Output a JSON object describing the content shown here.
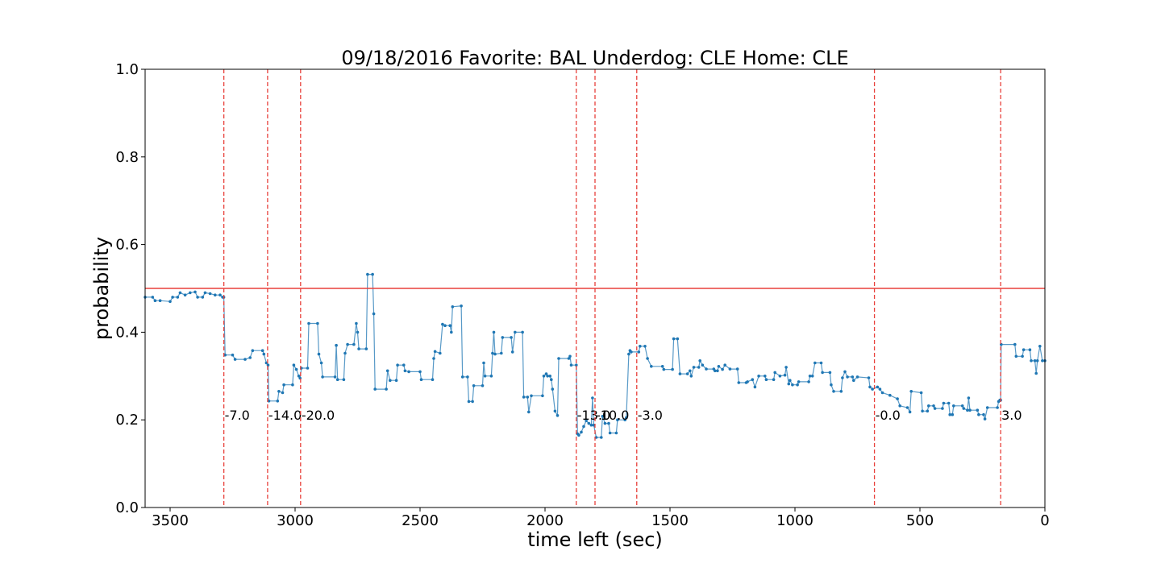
{
  "chart_data": {
    "type": "line",
    "title": "09/18/2016 Favorite: BAL Underdog: CLE Home: CLE",
    "xlabel": "time left (sec)",
    "ylabel": "probability",
    "xlim": [
      3600,
      0
    ],
    "ylim": [
      0.0,
      1.0
    ],
    "x_ticks": [
      3500,
      3000,
      2500,
      2000,
      1500,
      1000,
      500,
      0
    ],
    "y_ticks": [
      0.0,
      0.2,
      0.4,
      0.6,
      0.8,
      1.0
    ],
    "x_tick_labels": [
      "3500",
      "3000",
      "2500",
      "2000",
      "1500",
      "1000",
      "500",
      "0"
    ],
    "y_tick_labels": [
      "0.0",
      "0.2",
      "0.4",
      "0.6",
      "0.8",
      "1.0"
    ],
    "reference_line": {
      "y": 0.5,
      "color": "#e8413c"
    },
    "series_color": "#1f77b4",
    "event_lines": [
      {
        "x": 3285,
        "label": "-7.0"
      },
      {
        "x": 3110,
        "label": "-14.0"
      },
      {
        "x": 2978,
        "label": "-20.0"
      },
      {
        "x": 1875,
        "label": "-13.0"
      },
      {
        "x": 1800,
        "label": "-10.0"
      },
      {
        "x": 1633,
        "label": "-3.0"
      },
      {
        "x": 682,
        "label": "-0.0"
      },
      {
        "x": 177,
        "label": "3.0"
      }
    ],
    "series": [
      {
        "points": [
          [
            3600,
            0.48
          ],
          [
            3570,
            0.48
          ],
          [
            3560,
            0.472
          ],
          [
            3540,
            0.472
          ],
          [
            3500,
            0.47
          ],
          [
            3490,
            0.48
          ],
          [
            3470,
            0.48
          ],
          [
            3460,
            0.49
          ],
          [
            3440,
            0.485
          ],
          [
            3420,
            0.49
          ],
          [
            3400,
            0.492
          ],
          [
            3390,
            0.48
          ],
          [
            3370,
            0.48
          ],
          [
            3360,
            0.49
          ],
          [
            3340,
            0.488
          ],
          [
            3320,
            0.485
          ],
          [
            3300,
            0.485
          ],
          [
            3290,
            0.48
          ],
          [
            3285,
            0.48
          ],
          [
            3280,
            0.348
          ],
          [
            3250,
            0.348
          ],
          [
            3240,
            0.338
          ],
          [
            3200,
            0.338
          ],
          [
            3180,
            0.342
          ],
          [
            3170,
            0.358
          ],
          [
            3130,
            0.358
          ],
          [
            3125,
            0.35
          ],
          [
            3115,
            0.33
          ],
          [
            3108,
            0.325
          ],
          [
            3105,
            0.243
          ],
          [
            3070,
            0.243
          ],
          [
            3065,
            0.265
          ],
          [
            3050,
            0.262
          ],
          [
            3045,
            0.28
          ],
          [
            3010,
            0.28
          ],
          [
            3005,
            0.325
          ],
          [
            2995,
            0.315
          ],
          [
            2985,
            0.3
          ],
          [
            2980,
            0.295
          ],
          [
            2975,
            0.318
          ],
          [
            2950,
            0.318
          ],
          [
            2945,
            0.42
          ],
          [
            2910,
            0.42
          ],
          [
            2905,
            0.35
          ],
          [
            2895,
            0.33
          ],
          [
            2890,
            0.298
          ],
          [
            2840,
            0.298
          ],
          [
            2835,
            0.37
          ],
          [
            2830,
            0.292
          ],
          [
            2805,
            0.292
          ],
          [
            2800,
            0.352
          ],
          [
            2790,
            0.372
          ],
          [
            2765,
            0.372
          ],
          [
            2755,
            0.42
          ],
          [
            2750,
            0.4
          ],
          [
            2745,
            0.362
          ],
          [
            2715,
            0.362
          ],
          [
            2710,
            0.532
          ],
          [
            2690,
            0.532
          ],
          [
            2685,
            0.442
          ],
          [
            2680,
            0.27
          ],
          [
            2635,
            0.27
          ],
          [
            2630,
            0.312
          ],
          [
            2620,
            0.29
          ],
          [
            2595,
            0.29
          ],
          [
            2590,
            0.325
          ],
          [
            2565,
            0.325
          ],
          [
            2560,
            0.312
          ],
          [
            2545,
            0.31
          ],
          [
            2500,
            0.31
          ],
          [
            2495,
            0.292
          ],
          [
            2450,
            0.292
          ],
          [
            2445,
            0.34
          ],
          [
            2440,
            0.356
          ],
          [
            2420,
            0.352
          ],
          [
            2410,
            0.418
          ],
          [
            2400,
            0.415
          ],
          [
            2380,
            0.415
          ],
          [
            2375,
            0.4
          ],
          [
            2370,
            0.458
          ],
          [
            2335,
            0.46
          ],
          [
            2330,
            0.298
          ],
          [
            2310,
            0.298
          ],
          [
            2305,
            0.242
          ],
          [
            2290,
            0.242
          ],
          [
            2285,
            0.278
          ],
          [
            2250,
            0.278
          ],
          [
            2245,
            0.33
          ],
          [
            2240,
            0.3
          ],
          [
            2215,
            0.3
          ],
          [
            2210,
            0.352
          ],
          [
            2205,
            0.4
          ],
          [
            2200,
            0.35
          ],
          [
            2175,
            0.352
          ],
          [
            2170,
            0.388
          ],
          [
            2135,
            0.388
          ],
          [
            2130,
            0.355
          ],
          [
            2120,
            0.4
          ],
          [
            2090,
            0.4
          ],
          [
            2085,
            0.252
          ],
          [
            2070,
            0.252
          ],
          [
            2065,
            0.218
          ],
          [
            2055,
            0.255
          ],
          [
            2010,
            0.255
          ],
          [
            2005,
            0.3
          ],
          [
            1995,
            0.305
          ],
          [
            1990,
            0.3
          ],
          [
            1980,
            0.3
          ],
          [
            1975,
            0.292
          ],
          [
            1970,
            0.27
          ],
          [
            1960,
            0.22
          ],
          [
            1950,
            0.21
          ],
          [
            1945,
            0.34
          ],
          [
            1905,
            0.34
          ],
          [
            1900,
            0.345
          ],
          [
            1895,
            0.325
          ],
          [
            1875,
            0.325
          ],
          [
            1870,
            0.168
          ],
          [
            1865,
            0.165
          ],
          [
            1855,
            0.172
          ],
          [
            1845,
            0.185
          ],
          [
            1835,
            0.198
          ],
          [
            1825,
            0.192
          ],
          [
            1815,
            0.188
          ],
          [
            1810,
            0.25
          ],
          [
            1805,
            0.188
          ],
          [
            1795,
            0.16
          ],
          [
            1775,
            0.16
          ],
          [
            1770,
            0.208
          ],
          [
            1760,
            0.192
          ],
          [
            1745,
            0.192
          ],
          [
            1740,
            0.17
          ],
          [
            1715,
            0.17
          ],
          [
            1710,
            0.2
          ],
          [
            1680,
            0.2
          ],
          [
            1675,
            0.205
          ],
          [
            1665,
            0.35
          ],
          [
            1660,
            0.358
          ],
          [
            1655,
            0.355
          ],
          [
            1625,
            0.355
          ],
          [
            1620,
            0.368
          ],
          [
            1600,
            0.368
          ],
          [
            1590,
            0.34
          ],
          [
            1575,
            0.322
          ],
          [
            1530,
            0.322
          ],
          [
            1525,
            0.315
          ],
          [
            1490,
            0.315
          ],
          [
            1485,
            0.385
          ],
          [
            1470,
            0.385
          ],
          [
            1460,
            0.305
          ],
          [
            1430,
            0.305
          ],
          [
            1420,
            0.312
          ],
          [
            1415,
            0.3
          ],
          [
            1405,
            0.32
          ],
          [
            1385,
            0.32
          ],
          [
            1380,
            0.335
          ],
          [
            1370,
            0.325
          ],
          [
            1355,
            0.316
          ],
          [
            1325,
            0.316
          ],
          [
            1320,
            0.312
          ],
          [
            1310,
            0.312
          ],
          [
            1305,
            0.322
          ],
          [
            1290,
            0.315
          ],
          [
            1280,
            0.325
          ],
          [
            1260,
            0.316
          ],
          [
            1230,
            0.316
          ],
          [
            1225,
            0.285
          ],
          [
            1195,
            0.285
          ],
          [
            1190,
            0.287
          ],
          [
            1170,
            0.292
          ],
          [
            1160,
            0.275
          ],
          [
            1145,
            0.3
          ],
          [
            1120,
            0.3
          ],
          [
            1115,
            0.292
          ],
          [
            1085,
            0.292
          ],
          [
            1080,
            0.308
          ],
          [
            1060,
            0.3
          ],
          [
            1040,
            0.302
          ],
          [
            1035,
            0.32
          ],
          [
            1025,
            0.282
          ],
          [
            1020,
            0.29
          ],
          [
            1010,
            0.28
          ],
          [
            990,
            0.28
          ],
          [
            985,
            0.287
          ],
          [
            945,
            0.287
          ],
          [
            940,
            0.3
          ],
          [
            930,
            0.3
          ],
          [
            920,
            0.33
          ],
          [
            895,
            0.33
          ],
          [
            890,
            0.308
          ],
          [
            860,
            0.308
          ],
          [
            855,
            0.28
          ],
          [
            845,
            0.265
          ],
          [
            815,
            0.265
          ],
          [
            810,
            0.296
          ],
          [
            800,
            0.31
          ],
          [
            790,
            0.298
          ],
          [
            770,
            0.298
          ],
          [
            765,
            0.29
          ],
          [
            750,
            0.298
          ],
          [
            705,
            0.296
          ],
          [
            700,
            0.275
          ],
          [
            690,
            0.27
          ],
          [
            670,
            0.275
          ],
          [
            660,
            0.27
          ],
          [
            650,
            0.262
          ],
          [
            620,
            0.256
          ],
          [
            590,
            0.248
          ],
          [
            580,
            0.232
          ],
          [
            550,
            0.228
          ],
          [
            540,
            0.218
          ],
          [
            535,
            0.265
          ],
          [
            495,
            0.262
          ],
          [
            490,
            0.22
          ],
          [
            470,
            0.22
          ],
          [
            465,
            0.232
          ],
          [
            445,
            0.232
          ],
          [
            440,
            0.226
          ],
          [
            410,
            0.226
          ],
          [
            405,
            0.238
          ],
          [
            385,
            0.238
          ],
          [
            380,
            0.212
          ],
          [
            370,
            0.212
          ],
          [
            365,
            0.232
          ],
          [
            330,
            0.232
          ],
          [
            325,
            0.226
          ],
          [
            310,
            0.222
          ],
          [
            305,
            0.25
          ],
          [
            300,
            0.222
          ],
          [
            270,
            0.222
          ],
          [
            265,
            0.212
          ],
          [
            245,
            0.212
          ],
          [
            240,
            0.202
          ],
          [
            230,
            0.228
          ],
          [
            190,
            0.228
          ],
          [
            185,
            0.242
          ],
          [
            180,
            0.245
          ],
          [
            177,
            0.245
          ],
          [
            175,
            0.372
          ],
          [
            120,
            0.372
          ],
          [
            115,
            0.345
          ],
          [
            90,
            0.345
          ],
          [
            85,
            0.36
          ],
          [
            60,
            0.36
          ],
          [
            55,
            0.335
          ],
          [
            40,
            0.335
          ],
          [
            35,
            0.306
          ],
          [
            30,
            0.335
          ],
          [
            20,
            0.368
          ],
          [
            10,
            0.335
          ],
          [
            0,
            0.335
          ]
        ]
      }
    ]
  }
}
